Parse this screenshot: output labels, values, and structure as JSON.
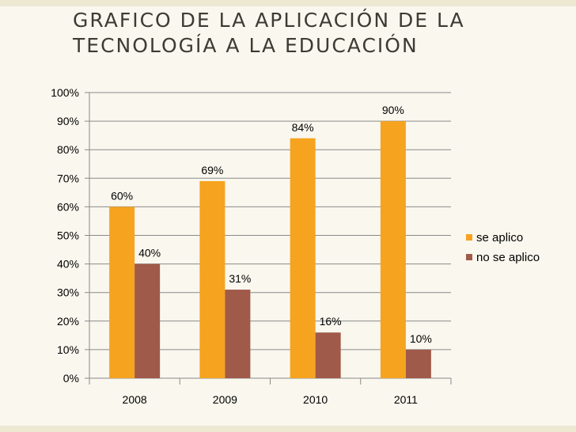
{
  "slide": {
    "title_line1": "Grafico de la aplicación de la",
    "title_line2": "tecnología a la educación"
  },
  "colors": {
    "background": "#f9f7ee",
    "gridline": "#8a8a8a",
    "series1": "#f6a31f",
    "series2": "#a05a49"
  },
  "chart_data": {
    "type": "bar",
    "categories": [
      "2008",
      "2009",
      "2010",
      "2011"
    ],
    "series": [
      {
        "name": "se aplico",
        "values": [
          60,
          69,
          84,
          90
        ],
        "labels": [
          "60%",
          "69%",
          "84%",
          "90%"
        ]
      },
      {
        "name": "no se aplico",
        "values": [
          40,
          31,
          16,
          10
        ],
        "labels": [
          "40%",
          "31%",
          "16%",
          "10%"
        ]
      }
    ],
    "ylim": [
      0,
      100
    ],
    "yticks": [
      0,
      10,
      20,
      30,
      40,
      50,
      60,
      70,
      80,
      90,
      100
    ],
    "ytick_labels": [
      "0%",
      "10%",
      "20%",
      "30%",
      "40%",
      "50%",
      "60%",
      "70%",
      "80%",
      "90%",
      "100%"
    ],
    "grid": true,
    "legend_position": "right"
  }
}
